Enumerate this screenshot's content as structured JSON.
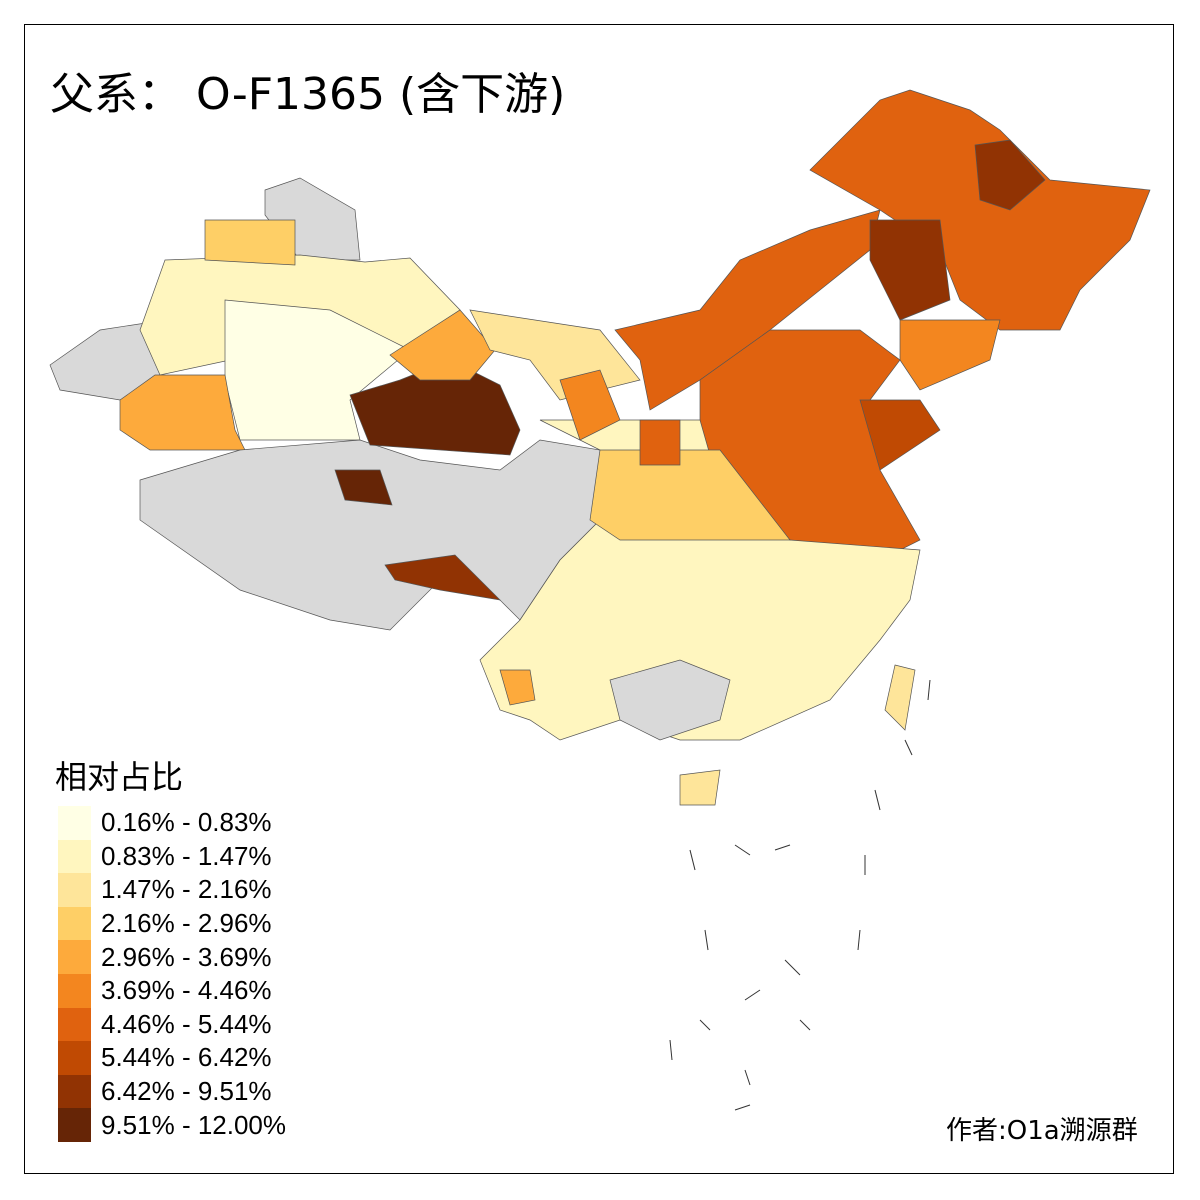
{
  "title": "父系： O-F1365 (含下游)",
  "legend": {
    "title": "相对占比",
    "no_data_color": "#D9D9D9",
    "classes": [
      {
        "label": "0.16% - 0.83%",
        "color": "#FFFFE5"
      },
      {
        "label": "0.83% - 1.47%",
        "color": "#FFF6BF"
      },
      {
        "label": "1.47% - 2.16%",
        "color": "#FEE59A"
      },
      {
        "label": "2.16% - 2.96%",
        "color": "#FECF66"
      },
      {
        "label": "2.96% - 3.69%",
        "color": "#FDAA3C"
      },
      {
        "label": "3.69% - 4.46%",
        "color": "#F3861F"
      },
      {
        "label": "4.46% - 5.44%",
        "color": "#E0620F"
      },
      {
        "label": "5.44% - 6.42%",
        "color": "#C04A03"
      },
      {
        "label": "6.42% - 9.51%",
        "color": "#913303"
      },
      {
        "label": "9.51% - 12.00%",
        "color": "#662506"
      }
    ]
  },
  "region_classes": [
    -1,
    -1,
    1,
    0,
    4,
    3,
    -1,
    9,
    9,
    8,
    4,
    2,
    6,
    6,
    8,
    8,
    5,
    6,
    7,
    1,
    3,
    -1,
    2,
    2,
    4,
    5,
    6
  ],
  "credit": "作者:O1a溯源群"
}
